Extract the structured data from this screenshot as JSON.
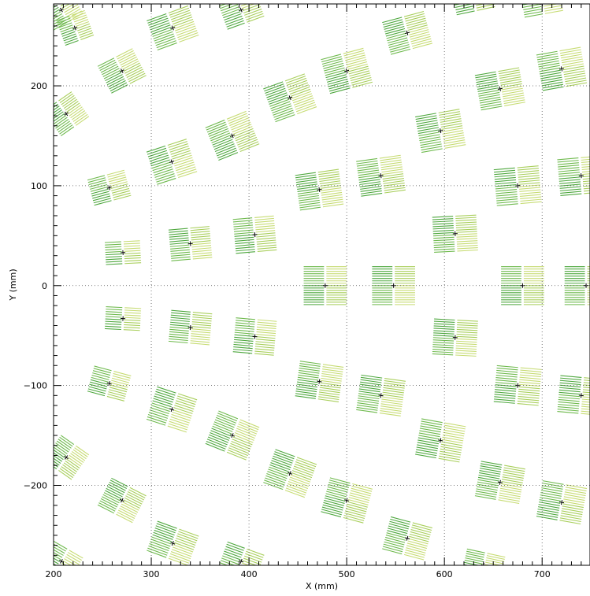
{
  "chart_data": {
    "type": "scatter",
    "xlabel": "X (mm)",
    "ylabel": "Y (mm)",
    "xlim": [
      200,
      749
    ],
    "ylim": [
      -280,
      282
    ],
    "xticks": [
      200,
      300,
      400,
      500,
      600,
      700
    ],
    "yticks": [
      200,
      100,
      0,
      -100,
      -200
    ],
    "xtick_labels": [
      "200",
      "300",
      "400",
      "500",
      "600",
      "700"
    ],
    "ytick_labels": [
      "200",
      "100",
      "0",
      "−100",
      "−200"
    ],
    "grid": true,
    "colors": {
      "dark": "#4fa83f",
      "mid": "#6fba4e",
      "light": "#a9cf5c",
      "pale": "#c7dc74",
      "axis": "#000000",
      "grid": "#555555"
    },
    "modules": [
      {
        "x": 208,
        "y": 276,
        "angle": -30,
        "w": 70,
        "h": 54
      },
      {
        "x": 222,
        "y": 258,
        "angle": -20,
        "w": 62,
        "h": 52
      },
      {
        "x": 322,
        "y": 258,
        "angle": -20,
        "w": 90,
        "h": 62
      },
      {
        "x": 270,
        "y": 215,
        "angle": -27,
        "w": 80,
        "h": 60
      },
      {
        "x": 213,
        "y": 172,
        "angle": -35,
        "w": 70,
        "h": 60
      },
      {
        "x": 392,
        "y": 276,
        "angle": -20,
        "w": 80,
        "h": 54
      },
      {
        "x": 562,
        "y": 253,
        "angle": -15,
        "w": 88,
        "h": 66
      },
      {
        "x": 500,
        "y": 215,
        "angle": -15,
        "w": 90,
        "h": 70
      },
      {
        "x": 442,
        "y": 188,
        "angle": -20,
        "w": 90,
        "h": 70
      },
      {
        "x": 383,
        "y": 150,
        "angle": -22,
        "w": 90,
        "h": 70
      },
      {
        "x": 321,
        "y": 124,
        "angle": -18,
        "w": 86,
        "h": 68
      },
      {
        "x": 257,
        "y": 98,
        "angle": -15,
        "w": 78,
        "h": 52
      },
      {
        "x": 657,
        "y": 197,
        "angle": -10,
        "w": 92,
        "h": 70
      },
      {
        "x": 720,
        "y": 217,
        "angle": -10,
        "w": 92,
        "h": 72
      },
      {
        "x": 596,
        "y": 155,
        "angle": -10,
        "w": 92,
        "h": 72
      },
      {
        "x": 535,
        "y": 110,
        "angle": -8,
        "w": 92,
        "h": 70
      },
      {
        "x": 472,
        "y": 96,
        "angle": -8,
        "w": 90,
        "h": 70
      },
      {
        "x": 406,
        "y": 51,
        "angle": -5,
        "w": 84,
        "h": 68
      },
      {
        "x": 340,
        "y": 42,
        "angle": -5,
        "w": 84,
        "h": 62
      },
      {
        "x": 271,
        "y": 33,
        "angle": -3,
        "w": 72,
        "h": 44
      },
      {
        "x": 675,
        "y": 100,
        "angle": -5,
        "w": 92,
        "h": 72
      },
      {
        "x": 740,
        "y": 110,
        "angle": -5,
        "w": 92,
        "h": 72
      },
      {
        "x": 611,
        "y": 52,
        "angle": -3,
        "w": 90,
        "h": 70
      },
      {
        "x": 478,
        "y": 0,
        "angle": 0,
        "w": 88,
        "h": 76
      },
      {
        "x": 548,
        "y": 0,
        "angle": 0,
        "w": 88,
        "h": 76
      },
      {
        "x": 680,
        "y": 0,
        "angle": 0,
        "w": 88,
        "h": 76
      },
      {
        "x": 745,
        "y": 0,
        "angle": 0,
        "w": 88,
        "h": 76
      },
      {
        "x": 271,
        "y": -33,
        "angle": 3,
        "w": 72,
        "h": 44
      },
      {
        "x": 340,
        "y": -42,
        "angle": 5,
        "w": 84,
        "h": 62
      },
      {
        "x": 406,
        "y": -51,
        "angle": 5,
        "w": 84,
        "h": 68
      },
      {
        "x": 611,
        "y": -52,
        "angle": 3,
        "w": 90,
        "h": 70
      },
      {
        "x": 472,
        "y": -96,
        "angle": 8,
        "w": 90,
        "h": 70
      },
      {
        "x": 535,
        "y": -110,
        "angle": 8,
        "w": 92,
        "h": 70
      },
      {
        "x": 675,
        "y": -100,
        "angle": 5,
        "w": 92,
        "h": 72
      },
      {
        "x": 740,
        "y": -110,
        "angle": 5,
        "w": 92,
        "h": 72
      },
      {
        "x": 257,
        "y": -98,
        "angle": 15,
        "w": 78,
        "h": 52
      },
      {
        "x": 321,
        "y": -124,
        "angle": 18,
        "w": 86,
        "h": 68
      },
      {
        "x": 383,
        "y": -150,
        "angle": 22,
        "w": 90,
        "h": 70
      },
      {
        "x": 442,
        "y": -188,
        "angle": 20,
        "w": 90,
        "h": 70
      },
      {
        "x": 500,
        "y": -215,
        "angle": 15,
        "w": 90,
        "h": 70
      },
      {
        "x": 562,
        "y": -253,
        "angle": 15,
        "w": 88,
        "h": 66
      },
      {
        "x": 596,
        "y": -155,
        "angle": 10,
        "w": 92,
        "h": 72
      },
      {
        "x": 657,
        "y": -197,
        "angle": 10,
        "w": 92,
        "h": 70
      },
      {
        "x": 720,
        "y": -217,
        "angle": 10,
        "w": 92,
        "h": 72
      },
      {
        "x": 270,
        "y": -215,
        "angle": 27,
        "w": 80,
        "h": 60
      },
      {
        "x": 213,
        "y": -172,
        "angle": 35,
        "w": 70,
        "h": 60
      },
      {
        "x": 322,
        "y": -258,
        "angle": 20,
        "w": 90,
        "h": 62
      },
      {
        "x": 208,
        "y": -276,
        "angle": 30,
        "w": 70,
        "h": 54
      },
      {
        "x": 392,
        "y": -276,
        "angle": 20,
        "w": 80,
        "h": 54
      },
      {
        "x": 640,
        "y": -280,
        "angle": 12,
        "w": 80,
        "h": 50
      },
      {
        "x": 700,
        "y": 282,
        "angle": -10,
        "w": 80,
        "h": 40
      },
      {
        "x": 630,
        "y": 285,
        "angle": -12,
        "w": 80,
        "h": 40
      }
    ]
  }
}
